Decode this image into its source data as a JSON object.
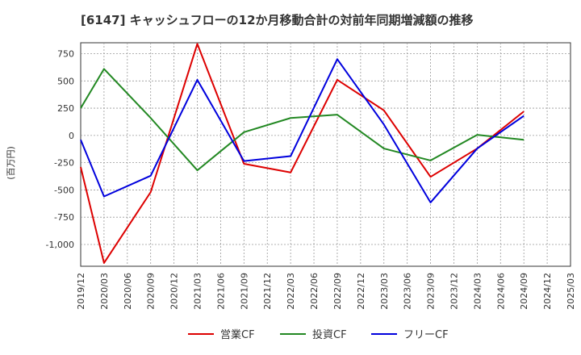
{
  "chart_data": {
    "type": "line",
    "title": "[6147]  キャッシュフローの12か月移動合計の対前年同期増減額の推移",
    "ylabel": "(百万円)",
    "xlabel": "",
    "x": [
      "2019/12",
      "2020/03",
      "2020/06",
      "2020/09",
      "2020/12",
      "2021/03",
      "2021/06",
      "2021/09",
      "2021/12",
      "2022/03",
      "2022/06",
      "2022/09",
      "2022/12",
      "2023/03",
      "2023/06",
      "2023/09",
      "2023/12",
      "2024/03",
      "2024/06",
      "2024/09",
      "2024/12",
      "2025/03"
    ],
    "ylim": [
      -1200,
      850
    ],
    "yticks": [
      750,
      500,
      250,
      0,
      -250,
      -500,
      -750,
      -1000
    ],
    "ytick_labels": [
      "750",
      "500",
      "250",
      "0",
      "-250",
      "-500",
      "-750",
      "-1,000"
    ],
    "grid": true,
    "legend_position": "bottom",
    "series": [
      {
        "name": "営業CF",
        "color": "#dd0000",
        "points": [
          [
            "2019/12",
            -290
          ],
          [
            "2020/03",
            -1170
          ],
          [
            "2020/09",
            -520
          ],
          [
            "2021/03",
            840
          ],
          [
            "2021/09",
            -260
          ],
          [
            "2022/03",
            -340
          ],
          [
            "2022/09",
            510
          ],
          [
            "2023/03",
            230
          ],
          [
            "2023/09",
            -380
          ],
          [
            "2024/03",
            -120
          ],
          [
            "2024/09",
            220
          ]
        ]
      },
      {
        "name": "投資CF",
        "color": "#228822",
        "points": [
          [
            "2019/12",
            250
          ],
          [
            "2020/03",
            610
          ],
          [
            "2020/09",
            160
          ],
          [
            "2021/03",
            -320
          ],
          [
            "2021/09",
            30
          ],
          [
            "2022/03",
            160
          ],
          [
            "2022/09",
            190
          ],
          [
            "2023/03",
            -120
          ],
          [
            "2023/09",
            -230
          ],
          [
            "2024/03",
            5
          ],
          [
            "2024/09",
            -40
          ]
        ]
      },
      {
        "name": "フリーCF",
        "color": "#0000dd",
        "points": [
          [
            "2019/12",
            -40
          ],
          [
            "2020/03",
            -560
          ],
          [
            "2020/09",
            -370
          ],
          [
            "2021/03",
            510
          ],
          [
            "2021/09",
            -235
          ],
          [
            "2022/03",
            -190
          ],
          [
            "2022/09",
            700
          ],
          [
            "2023/03",
            100
          ],
          [
            "2023/09",
            -615
          ],
          [
            "2024/03",
            -120
          ],
          [
            "2024/09",
            180
          ]
        ]
      }
    ]
  }
}
